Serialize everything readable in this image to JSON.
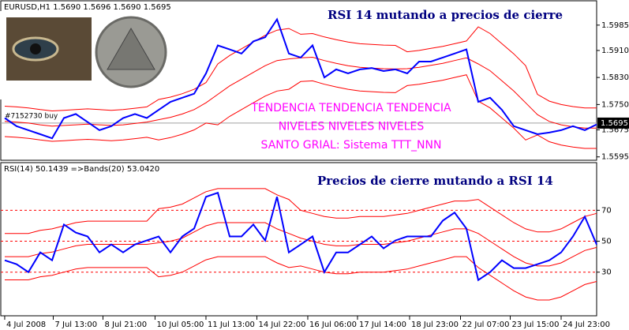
{
  "chart_data": [
    {
      "type": "line",
      "subtitle": "EURUSD,H1  1.5690 1.5696 1.5690 1.5695",
      "title": "RSI 14 mutando a precios de cierre",
      "annotations": [
        "TENDENCIA TENDENCIA TENDENCIA",
        "NIVELES NIVELES NIVELES",
        "SANTO GRIAL: Sistema TTT_NNN"
      ],
      "order_label": "#7152730 buy",
      "current_price": 1.5695,
      "x": [
        0,
        1,
        2,
        3,
        4,
        5,
        6,
        7,
        8,
        9,
        10,
        11,
        12,
        13,
        14,
        15,
        16,
        17,
        18,
        19,
        20,
        21,
        22,
        23,
        24,
        25,
        26,
        27,
        28,
        29,
        30,
        31,
        32,
        33,
        34,
        35,
        36,
        37,
        38,
        39,
        40,
        41,
        42,
        43,
        44,
        45,
        46,
        47,
        48,
        49,
        50
      ],
      "xlim": [
        -0.33,
        50
      ],
      "ylim": [
        1.5585,
        1.6057
      ],
      "yticks": [
        1.5985,
        {
          "value": 1.591,
          "label": "1.5910"
        },
        {
          "value": 1.583,
          "label": "1.5830"
        },
        {
          "value": 1.575,
          "label": "1.5750"
        },
        1.5675,
        1.5595
      ],
      "series": [
        {
          "color": "#ff0000",
          "values": [
            1.5745,
            1.5743,
            1.574,
            1.5735,
            1.5731,
            1.5733,
            1.5735,
            1.5737,
            1.5735,
            1.5733,
            1.5735,
            1.5739,
            1.5743,
            1.5765,
            1.5772,
            1.5782,
            1.5795,
            1.5815,
            1.587,
            1.5895,
            1.5915,
            1.5935,
            1.5955,
            1.597,
            1.5975,
            1.5958,
            1.596,
            1.595,
            1.5942,
            1.5935,
            1.593,
            1.5928,
            1.5926,
            1.5925,
            1.5906,
            1.591,
            1.5916,
            1.5922,
            1.593,
            1.5938,
            1.598,
            1.596,
            1.593,
            1.59,
            1.5865,
            1.578,
            1.576,
            1.575,
            1.5744,
            1.574,
            1.574
          ]
        },
        {
          "color": "#ff0000",
          "values": [
            1.57,
            1.5698,
            1.5695,
            1.569,
            1.5686,
            1.5688,
            1.569,
            1.5692,
            1.569,
            1.5688,
            1.569,
            1.5694,
            1.5698,
            1.5705,
            1.5712,
            1.5722,
            1.5735,
            1.5755,
            1.578,
            1.5805,
            1.5825,
            1.5845,
            1.5865,
            1.588,
            1.5885,
            1.5888,
            1.589,
            1.588,
            1.5872,
            1.5865,
            1.586,
            1.5858,
            1.5856,
            1.5855,
            1.5856,
            1.586,
            1.5866,
            1.5872,
            1.588,
            1.5888,
            1.587,
            1.585,
            1.582,
            1.579,
            1.5755,
            1.572,
            1.57,
            1.569,
            1.5684,
            1.568,
            1.568
          ]
        },
        {
          "color": "#ff0000",
          "values": [
            1.5655,
            1.5653,
            1.565,
            1.5645,
            1.5641,
            1.5643,
            1.5645,
            1.5647,
            1.5645,
            1.5643,
            1.5645,
            1.5649,
            1.5653,
            1.5645,
            1.5652,
            1.5662,
            1.5675,
            1.5695,
            1.569,
            1.5715,
            1.5735,
            1.5755,
            1.5775,
            1.579,
            1.5795,
            1.5818,
            1.582,
            1.581,
            1.5802,
            1.5795,
            1.579,
            1.5788,
            1.5786,
            1.5785,
            1.5806,
            1.581,
            1.5816,
            1.5822,
            1.583,
            1.5838,
            1.576,
            1.574,
            1.571,
            1.568,
            1.5645,
            1.566,
            1.564,
            1.563,
            1.5624,
            1.562,
            1.562
          ]
        },
        {
          "color": "#0000ff",
          "values": [
            1.571,
            1.5686,
            1.5674,
            1.5662,
            1.565,
            1.571,
            1.5722,
            1.5698,
            1.5674,
            1.5686,
            1.571,
            1.5722,
            1.571,
            1.5734,
            1.5758,
            1.577,
            1.5782,
            1.5842,
            1.5925,
            1.5913,
            1.5901,
            1.5937,
            1.5949,
            1.6002,
            1.5901,
            1.5889,
            1.5925,
            1.583,
            1.5854,
            1.5842,
            1.5854,
            1.5858,
            1.5849,
            1.5854,
            1.5842,
            1.5877,
            1.5877,
            1.5889,
            1.5901,
            1.5913,
            1.5758,
            1.577,
            1.5734,
            1.5686,
            1.5674,
            1.5662,
            1.5667,
            1.5674,
            1.5686,
            1.5674,
            1.5691
          ]
        }
      ]
    },
    {
      "type": "line",
      "subtitle": "RSI(14) 50.1439  =>Bands(20) 53.0420",
      "title": "Precios de cierre mutando a RSI 14",
      "x": [
        0,
        1,
        2,
        3,
        4,
        5,
        6,
        7,
        8,
        9,
        10,
        11,
        12,
        13,
        14,
        15,
        16,
        17,
        18,
        19,
        20,
        21,
        22,
        23,
        24,
        25,
        26,
        27,
        28,
        29,
        30,
        31,
        32,
        33,
        34,
        35,
        36,
        37,
        38,
        39,
        40,
        41,
        42,
        43,
        44,
        45,
        46,
        47,
        48,
        49,
        50
      ],
      "xlim": [
        -0.33,
        50
      ],
      "ylim": [
        1.8,
        100.8
      ],
      "yticks": [
        70,
        50,
        30
      ],
      "grid": true,
      "grid_color": "#ff0000",
      "xticks": [
        {
          "value": 0,
          "label": "4 Jul 2008"
        },
        {
          "value": 4.1,
          "label": "7 Jul 13:00"
        },
        {
          "value": 8.3,
          "label": "8 Jul 21:00"
        },
        {
          "value": 12.7,
          "label": "10 Jul 05:00"
        },
        {
          "value": 17,
          "label": "11 Jul 13:00"
        },
        {
          "value": 21.3,
          "label": "14 Jul 22:00"
        },
        {
          "value": 25.6,
          "label": "16 Jul 06:00"
        },
        {
          "value": 29.8,
          "label": "17 Jul 14:00"
        },
        {
          "value": 34.2,
          "label": "18 Jul 23:00"
        },
        {
          "value": 38.5,
          "label": "22 Jul 07:00"
        },
        {
          "value": 42.7,
          "label": "23 Jul 15:00"
        },
        {
          "value": 47,
          "label": "24 Jul 23:00"
        }
      ],
      "series": [
        {
          "color": "#ff0000",
          "values": [
            55,
            55,
            55,
            57,
            58,
            60,
            62,
            63,
            63,
            63,
            63,
            63,
            63,
            71,
            72,
            74,
            78,
            82,
            84,
            84,
            84,
            84,
            84,
            80,
            77,
            70,
            68,
            66,
            65,
            65,
            66,
            66,
            66,
            67,
            68,
            70,
            72,
            74,
            76,
            76,
            77,
            72,
            67,
            62,
            58,
            56,
            56,
            58,
            62,
            66,
            68
          ]
        },
        {
          "color": "#ff0000",
          "values": [
            40,
            40,
            40,
            42,
            43,
            45,
            47,
            48,
            48,
            48,
            48,
            48,
            48,
            49,
            50,
            52,
            56,
            60,
            62,
            62,
            62,
            62,
            62,
            58,
            55,
            52,
            50,
            48,
            47,
            47,
            48,
            48,
            48,
            49,
            50,
            52,
            54,
            56,
            58,
            58,
            55,
            50,
            45,
            40,
            36,
            34,
            34,
            36,
            40,
            44,
            46
          ]
        },
        {
          "color": "#ff0000",
          "values": [
            25,
            25,
            25,
            27,
            28,
            30,
            32,
            33,
            33,
            33,
            33,
            33,
            33,
            27,
            28,
            30,
            34,
            38,
            40,
            40,
            40,
            40,
            40,
            36,
            33,
            34,
            32,
            30,
            29,
            29,
            30,
            30,
            30,
            31,
            32,
            34,
            36,
            38,
            40,
            40,
            33,
            28,
            23,
            18,
            14,
            12,
            12,
            14,
            18,
            22,
            24
          ]
        },
        {
          "color": "#0000ff",
          "values": [
            37.7,
            35.1,
            30,
            42.8,
            37.7,
            60.8,
            55.6,
            53.1,
            42.8,
            47.9,
            42.8,
            47.9,
            50.5,
            53.1,
            42.8,
            53.1,
            58.2,
            78.7,
            81.3,
            53.1,
            53.1,
            60.8,
            50.5,
            78.7,
            42.8,
            47.9,
            53.1,
            30,
            42.8,
            42.8,
            47.9,
            53.1,
            45.4,
            50.5,
            53.1,
            53.1,
            53.1,
            63.3,
            68.5,
            58.2,
            24.9,
            30,
            37.7,
            32.6,
            32.6,
            35.1,
            37.7,
            42.8,
            53.1,
            65.9,
            47.9
          ]
        }
      ]
    }
  ]
}
